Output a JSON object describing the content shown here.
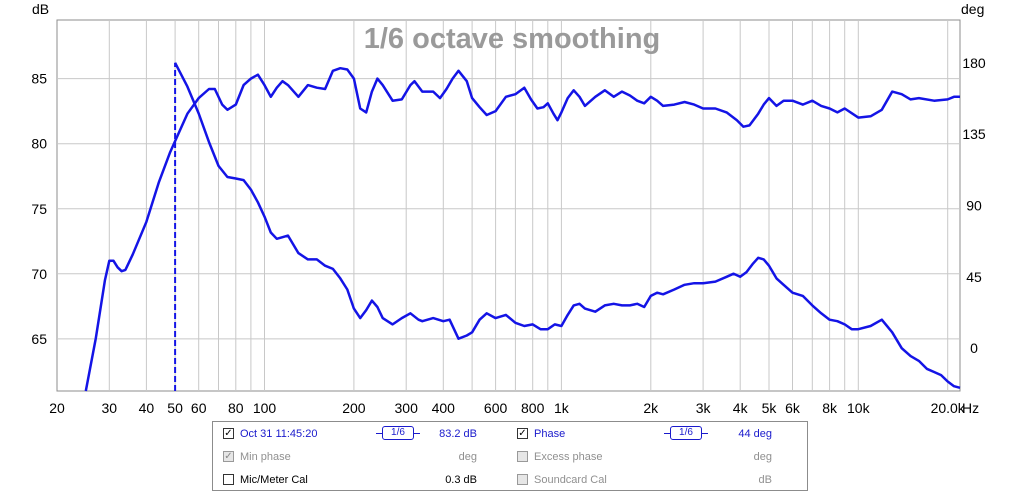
{
  "chart_data": {
    "type": "line",
    "title": "1/6 octave smoothing",
    "left_unit": "dB",
    "right_unit": "deg",
    "x_unit": "Hz",
    "x_scale": "log",
    "xlim": [
      20,
      22000
    ],
    "ylim_left": [
      61,
      89.5
    ],
    "ylim_right": [
      -27,
      207
    ],
    "grid": true,
    "x_ticks": [
      {
        "v": 20,
        "t": "20"
      },
      {
        "v": 30,
        "t": "30"
      },
      {
        "v": 40,
        "t": "40"
      },
      {
        "v": 50,
        "t": "50"
      },
      {
        "v": 60,
        "t": "60"
      },
      {
        "v": 80,
        "t": "80"
      },
      {
        "v": 100,
        "t": "100"
      },
      {
        "v": 200,
        "t": "200"
      },
      {
        "v": 300,
        "t": "300"
      },
      {
        "v": 400,
        "t": "400"
      },
      {
        "v": 600,
        "t": "600"
      },
      {
        "v": 800,
        "t": "800"
      },
      {
        "v": 1000,
        "t": "1k"
      },
      {
        "v": 2000,
        "t": "2k"
      },
      {
        "v": 3000,
        "t": "3k"
      },
      {
        "v": 4000,
        "t": "4k"
      },
      {
        "v": 5000,
        "t": "5k"
      },
      {
        "v": 6000,
        "t": "6k"
      },
      {
        "v": 8000,
        "t": "8k"
      },
      {
        "v": 10000,
        "t": "10k"
      },
      {
        "v": 20000,
        "t": "20.0k"
      }
    ],
    "y_left_ticks": [
      65,
      70,
      75,
      80,
      85
    ],
    "y_right_ticks": [
      0,
      45,
      90,
      135,
      180
    ],
    "marker_x": 50,
    "series": [
      {
        "name": "Oct 31 11:45:20",
        "axis": "left",
        "points": [
          [
            25,
            61
          ],
          [
            27,
            65
          ],
          [
            29,
            69.5
          ],
          [
            30,
            71
          ],
          [
            31,
            71
          ],
          [
            32,
            70.5
          ],
          [
            33,
            70.2
          ],
          [
            34,
            70.3
          ],
          [
            36,
            71.5
          ],
          [
            40,
            74
          ],
          [
            44,
            77
          ],
          [
            48,
            79.3
          ],
          [
            50,
            80.2
          ],
          [
            55,
            82.3
          ],
          [
            60,
            83.5
          ],
          [
            65,
            84.2
          ],
          [
            68,
            84.2
          ],
          [
            72,
            83
          ],
          [
            75,
            82.6
          ],
          [
            80,
            83
          ],
          [
            85,
            84.5
          ],
          [
            90,
            85
          ],
          [
            95,
            85.3
          ],
          [
            100,
            84.5
          ],
          [
            105,
            83.6
          ],
          [
            110,
            84.3
          ],
          [
            115,
            84.8
          ],
          [
            120,
            84.5
          ],
          [
            130,
            83.6
          ],
          [
            140,
            84.5
          ],
          [
            150,
            84.3
          ],
          [
            160,
            84.2
          ],
          [
            170,
            85.6
          ],
          [
            180,
            85.8
          ],
          [
            190,
            85.7
          ],
          [
            200,
            85
          ],
          [
            210,
            82.7
          ],
          [
            220,
            82.4
          ],
          [
            230,
            84
          ],
          [
            240,
            85
          ],
          [
            250,
            84.5
          ],
          [
            270,
            83.3
          ],
          [
            290,
            83.4
          ],
          [
            310,
            84.5
          ],
          [
            320,
            84.8
          ],
          [
            340,
            84
          ],
          [
            370,
            84
          ],
          [
            390,
            83.5
          ],
          [
            410,
            84.2
          ],
          [
            430,
            85
          ],
          [
            450,
            85.6
          ],
          [
            480,
            84.8
          ],
          [
            500,
            83.5
          ],
          [
            530,
            82.8
          ],
          [
            560,
            82.2
          ],
          [
            600,
            82.5
          ],
          [
            650,
            83.6
          ],
          [
            700,
            83.8
          ],
          [
            750,
            84.3
          ],
          [
            790,
            83.4
          ],
          [
            830,
            82.7
          ],
          [
            870,
            82.8
          ],
          [
            900,
            83.1
          ],
          [
            940,
            82.3
          ],
          [
            970,
            81.8
          ],
          [
            1000,
            82.4
          ],
          [
            1050,
            83.5
          ],
          [
            1100,
            84.1
          ],
          [
            1150,
            83.6
          ],
          [
            1200,
            82.9
          ],
          [
            1300,
            83.6
          ],
          [
            1400,
            84.1
          ],
          [
            1500,
            83.6
          ],
          [
            1600,
            84
          ],
          [
            1700,
            83.7
          ],
          [
            1800,
            83.3
          ],
          [
            1900,
            83.1
          ],
          [
            2000,
            83.6
          ],
          [
            2100,
            83.3
          ],
          [
            2200,
            82.9
          ],
          [
            2400,
            83
          ],
          [
            2600,
            83.2
          ],
          [
            2800,
            83
          ],
          [
            3000,
            82.7
          ],
          [
            3300,
            82.7
          ],
          [
            3600,
            82.4
          ],
          [
            3900,
            81.8
          ],
          [
            4100,
            81.3
          ],
          [
            4300,
            81.4
          ],
          [
            4600,
            82.3
          ],
          [
            4800,
            83
          ],
          [
            5000,
            83.5
          ],
          [
            5300,
            82.9
          ],
          [
            5600,
            83.3
          ],
          [
            6000,
            83.3
          ],
          [
            6500,
            83
          ],
          [
            7000,
            83.3
          ],
          [
            7500,
            82.9
          ],
          [
            8000,
            82.7
          ],
          [
            8500,
            82.4
          ],
          [
            9000,
            82.7
          ],
          [
            10000,
            82
          ],
          [
            11000,
            82.1
          ],
          [
            12000,
            82.6
          ],
          [
            13000,
            84
          ],
          [
            14000,
            83.8
          ],
          [
            15000,
            83.4
          ],
          [
            16000,
            83.5
          ],
          [
            18000,
            83.3
          ],
          [
            20000,
            83.4
          ],
          [
            21000,
            83.6
          ],
          [
            22000,
            83.6
          ]
        ]
      },
      {
        "name": "Phase",
        "axis": "right",
        "points": [
          [
            50,
            180
          ],
          [
            55,
            165
          ],
          [
            60,
            148
          ],
          [
            65,
            130
          ],
          [
            70,
            115
          ],
          [
            75,
            108
          ],
          [
            80,
            107
          ],
          [
            85,
            106
          ],
          [
            90,
            100
          ],
          [
            95,
            92
          ],
          [
            100,
            83
          ],
          [
            105,
            73
          ],
          [
            110,
            69
          ],
          [
            115,
            70
          ],
          [
            120,
            71
          ],
          [
            130,
            60
          ],
          [
            140,
            56
          ],
          [
            150,
            56
          ],
          [
            160,
            52
          ],
          [
            170,
            50
          ],
          [
            180,
            44
          ],
          [
            190,
            37
          ],
          [
            200,
            25
          ],
          [
            210,
            19
          ],
          [
            220,
            24
          ],
          [
            230,
            30
          ],
          [
            240,
            26
          ],
          [
            250,
            19
          ],
          [
            270,
            15
          ],
          [
            290,
            19
          ],
          [
            310,
            22
          ],
          [
            330,
            18
          ],
          [
            340,
            17
          ],
          [
            370,
            19
          ],
          [
            400,
            17
          ],
          [
            420,
            18
          ],
          [
            450,
            6
          ],
          [
            480,
            8
          ],
          [
            500,
            10
          ],
          [
            530,
            18
          ],
          [
            560,
            22
          ],
          [
            600,
            19
          ],
          [
            650,
            21
          ],
          [
            700,
            16
          ],
          [
            750,
            14
          ],
          [
            800,
            15
          ],
          [
            850,
            12
          ],
          [
            900,
            12
          ],
          [
            950,
            15
          ],
          [
            1000,
            14
          ],
          [
            1050,
            21
          ],
          [
            1100,
            27
          ],
          [
            1150,
            28
          ],
          [
            1200,
            25
          ],
          [
            1300,
            23
          ],
          [
            1400,
            27
          ],
          [
            1500,
            28
          ],
          [
            1600,
            27
          ],
          [
            1700,
            27
          ],
          [
            1800,
            28
          ],
          [
            1900,
            26
          ],
          [
            2000,
            33
          ],
          [
            2100,
            35
          ],
          [
            2200,
            34
          ],
          [
            2400,
            37
          ],
          [
            2600,
            40
          ],
          [
            2800,
            41
          ],
          [
            3000,
            41
          ],
          [
            3300,
            42
          ],
          [
            3600,
            45
          ],
          [
            3800,
            47
          ],
          [
            4000,
            45
          ],
          [
            4200,
            48
          ],
          [
            4400,
            53
          ],
          [
            4600,
            57
          ],
          [
            4800,
            56
          ],
          [
            5000,
            52
          ],
          [
            5300,
            44
          ],
          [
            5600,
            40
          ],
          [
            6000,
            35
          ],
          [
            6500,
            33
          ],
          [
            7000,
            27
          ],
          [
            7500,
            22
          ],
          [
            8000,
            18
          ],
          [
            8500,
            17
          ],
          [
            9000,
            15
          ],
          [
            9500,
            12
          ],
          [
            10000,
            12
          ],
          [
            11000,
            14
          ],
          [
            12000,
            18
          ],
          [
            13000,
            10
          ],
          [
            14000,
            0
          ],
          [
            15000,
            -5
          ],
          [
            16000,
            -8
          ],
          [
            17000,
            -13
          ],
          [
            18000,
            -15
          ],
          [
            19000,
            -17
          ],
          [
            20000,
            -21
          ],
          [
            21000,
            -24
          ],
          [
            22000,
            -25
          ]
        ]
      }
    ]
  },
  "legend": {
    "row1": {
      "name": "Oct 31 11:45:20",
      "smoothing": "1/6",
      "value": "83.2 dB",
      "name2": "Phase",
      "smoothing2": "1/6",
      "value2": "44 deg",
      "check": "✓",
      "check2": "✓"
    },
    "row2": {
      "name": "Min phase",
      "value": "deg",
      "name2": "Excess phase",
      "value2": "deg",
      "check": "✓"
    },
    "row3": {
      "name": "Mic/Meter Cal",
      "value": "0.3 dB",
      "name2": "Soundcard Cal",
      "value2": "dB"
    }
  },
  "colors": {
    "curve": "#1414e6",
    "grid": "#c8c8c8",
    "border": "#8c8c8c"
  }
}
